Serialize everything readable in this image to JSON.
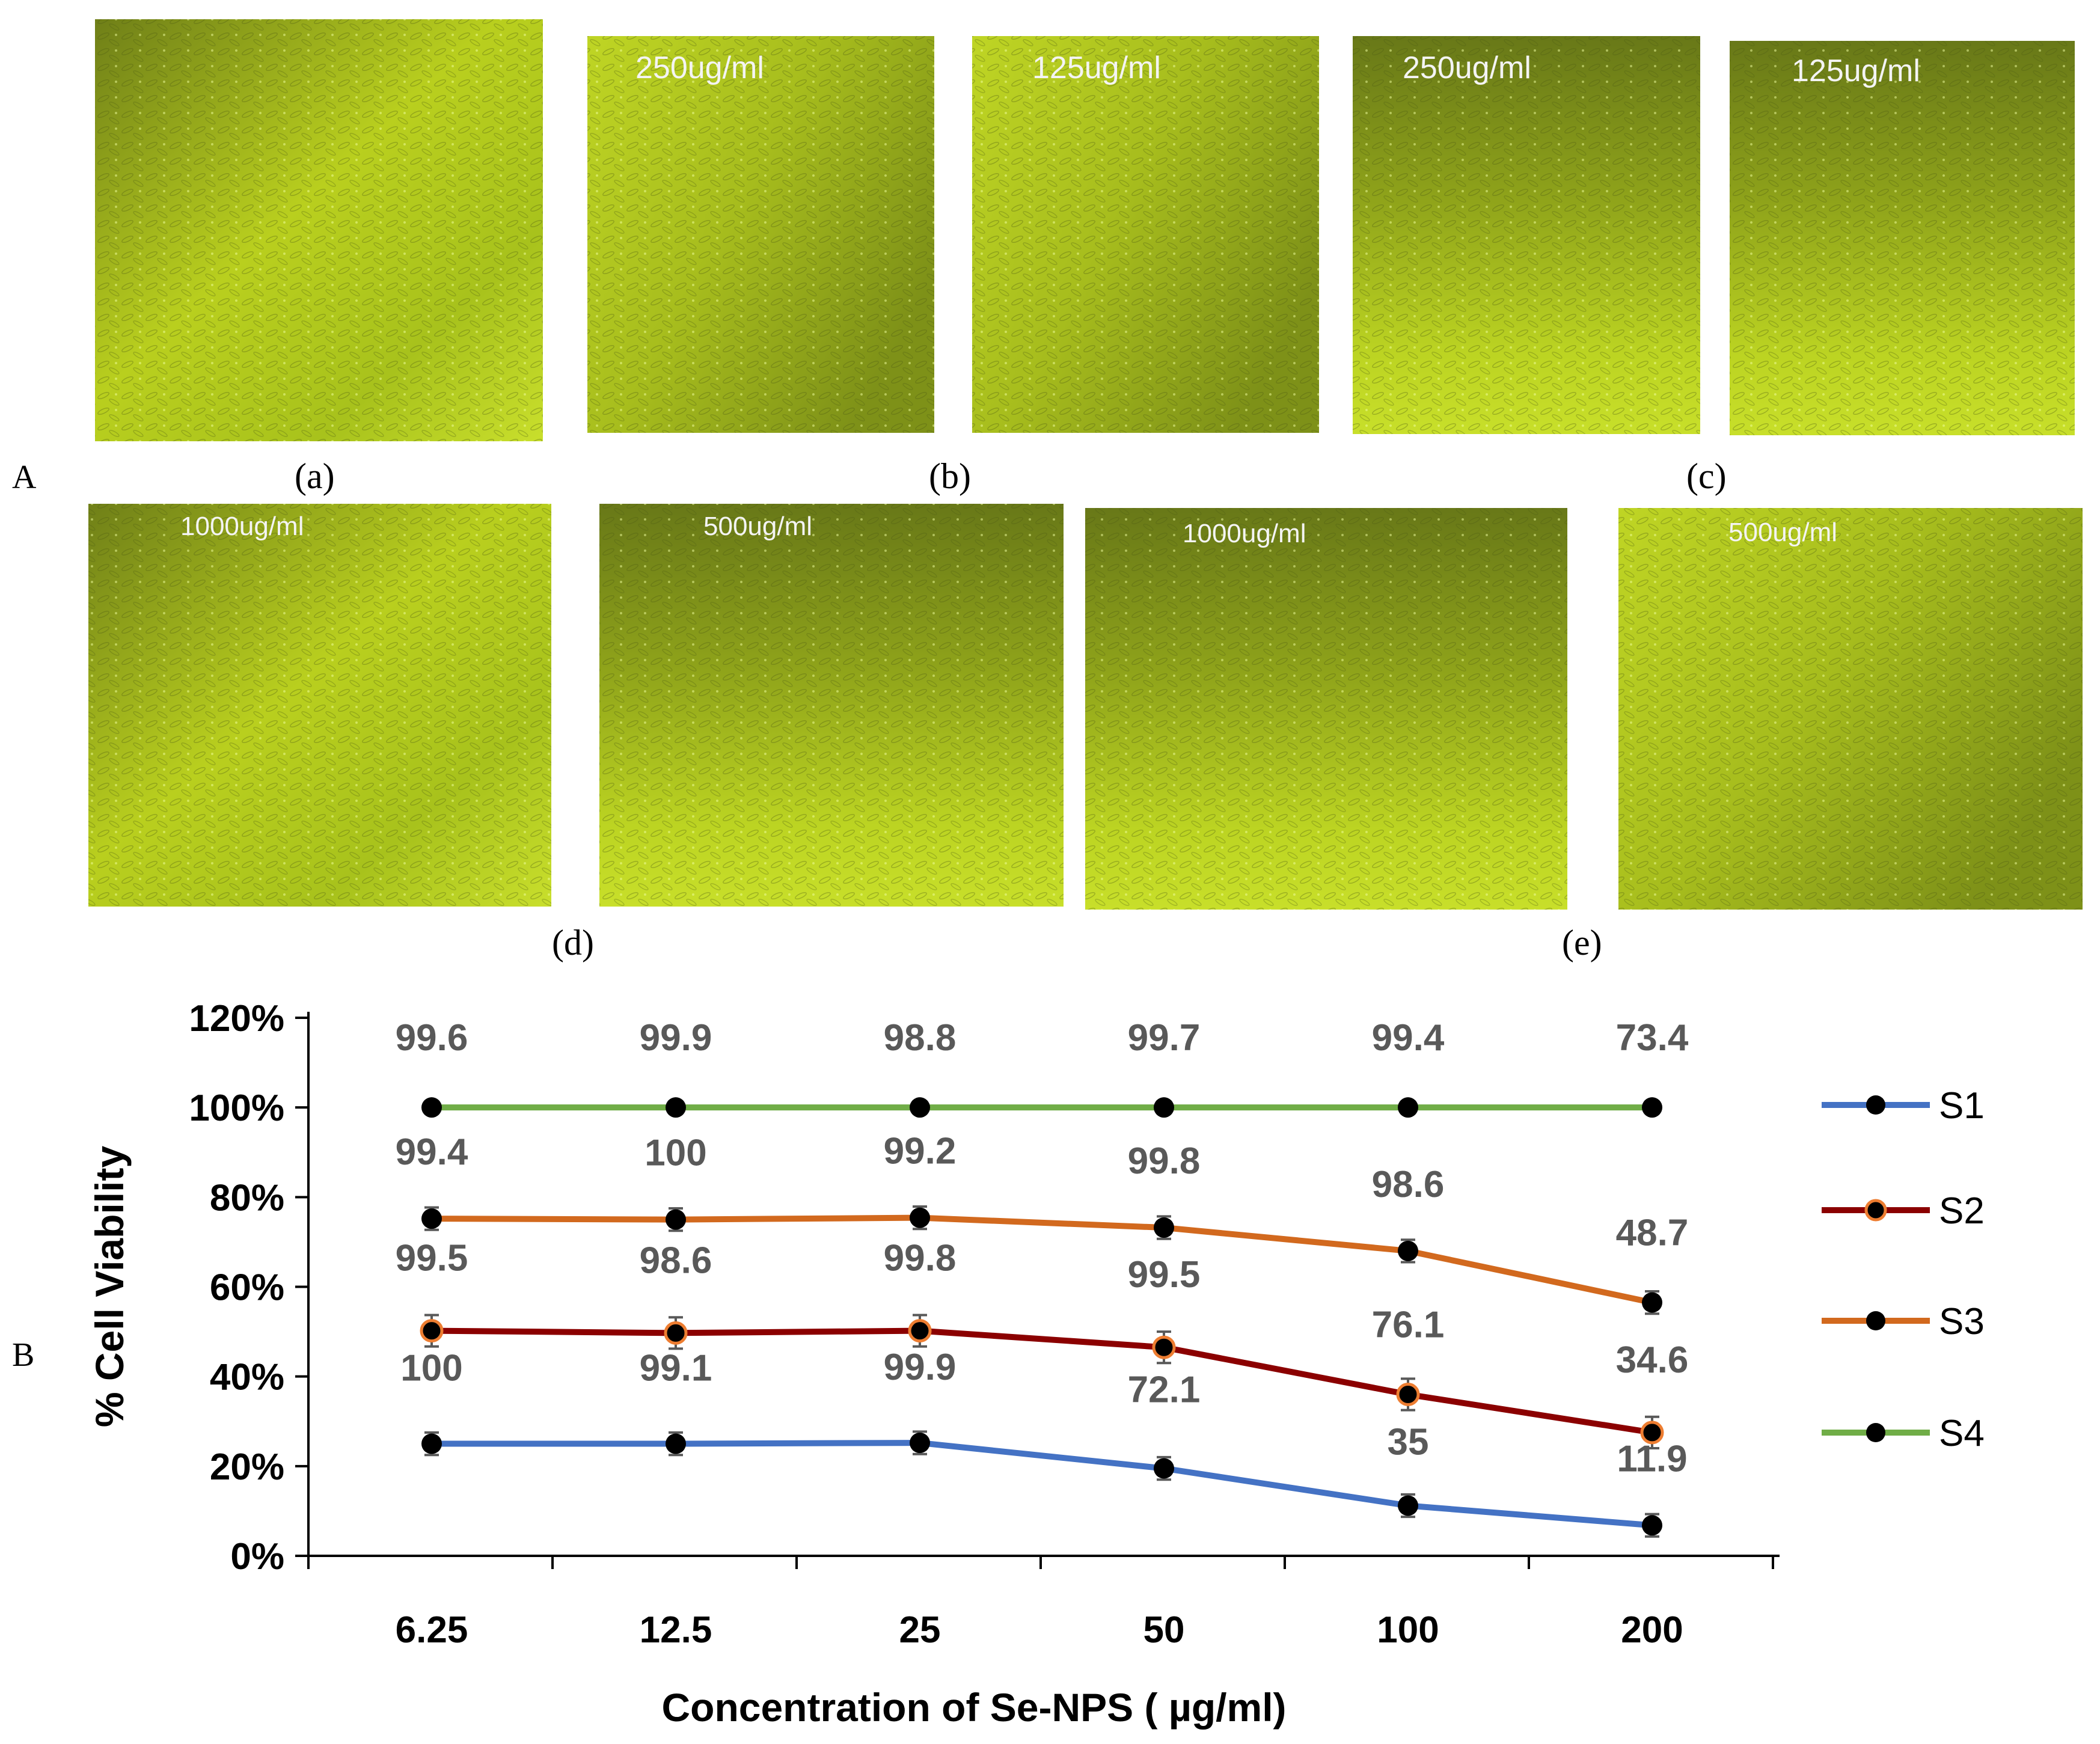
{
  "figure": {
    "panel_A_label": "A",
    "panel_B_label": "B"
  },
  "micrographs": [
    {
      "id": "a1",
      "label": "",
      "group": "a"
    },
    {
      "id": "b1",
      "label": "250ug/ml",
      "group": "b"
    },
    {
      "id": "b2",
      "label": "125ug/ml",
      "group": "b"
    },
    {
      "id": "c1",
      "label": "250ug/ml",
      "group": "c"
    },
    {
      "id": "c2",
      "label": "125ug/ml",
      "group": "c"
    },
    {
      "id": "d1",
      "label": "1000ug/ml",
      "group": "d"
    },
    {
      "id": "d2",
      "label": "500ug/ml",
      "group": "d"
    },
    {
      "id": "e1",
      "label": "1000ug/ml",
      "group": "e"
    },
    {
      "id": "e2",
      "label": "500ug/ml",
      "group": "e"
    }
  ],
  "captions": {
    "a": "(a)",
    "b": "(b)",
    "c": "(c)",
    "d": "(d)",
    "e": "(e)"
  },
  "colors": {
    "micrograph_light": "#c8dc1e",
    "micrograph_dark": "#5a6a12",
    "s1": "#4472c4",
    "s2": "#8b0000",
    "s3": "#d2691e",
    "s4": "#70ad47",
    "marker": "#000000",
    "s2_marker_edge": "#ed7d31",
    "label_text": "#595959",
    "axis": "#000000"
  },
  "chart_data": {
    "type": "line",
    "categories": [
      "6.25",
      "12.5",
      "25",
      "50",
      "100",
      "200"
    ],
    "xlabel": "Concentration of Se-NPS ( µg/ml)",
    "ylabel": "% Cell Viability",
    "ylim": [
      0,
      1.2
    ],
    "yticks": [
      "0%",
      "20%",
      "40%",
      "60%",
      "80%",
      "100%",
      "120%"
    ],
    "legend_position": "right",
    "series": [
      {
        "name": "S1",
        "values": [
          0.25,
          0.25,
          0.252,
          0.195,
          0.112,
          0.068
        ],
        "error": 0.025,
        "data_labels": [
          "100",
          "99.1",
          "99.9",
          "72.1",
          "35",
          "11.9"
        ]
      },
      {
        "name": "S2",
        "values": [
          0.502,
          0.497,
          0.502,
          0.465,
          0.36,
          0.275
        ],
        "error": 0.035,
        "data_labels": [
          "99.5",
          "98.6",
          "99.8",
          "99.5",
          "76.1",
          "34.6"
        ]
      },
      {
        "name": "S3",
        "values": [
          0.752,
          0.75,
          0.754,
          0.732,
          0.68,
          0.565
        ],
        "error": 0.025,
        "data_labels": [
          "99.4",
          "100",
          "99.2",
          "99.8",
          "98.6",
          "48.7"
        ]
      },
      {
        "name": "S4",
        "values": [
          1.0,
          1.0,
          1.0,
          1.0,
          1.0,
          1.0
        ],
        "error": 0,
        "data_labels": [
          "99.6",
          "99.9",
          "98.8",
          "99.7",
          "99.4",
          "73.4"
        ]
      }
    ]
  }
}
